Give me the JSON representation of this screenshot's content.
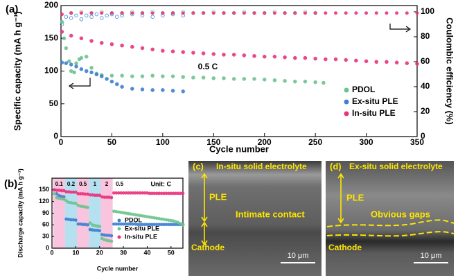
{
  "chart_data": [
    {
      "type": "scatter",
      "panel": "(a)",
      "xlabel": "Cycle number",
      "ylabel": "Specific capacity (mA h g⁻¹)",
      "y2label": "Coulombic efficiency (%)",
      "annotations": [
        "0.5 C"
      ],
      "xlim": [
        0,
        350
      ],
      "xticks": [
        0,
        50,
        100,
        150,
        200,
        250,
        300,
        350
      ],
      "ylim": [
        0,
        200
      ],
      "yticks": [
        0,
        50,
        100,
        150,
        200
      ],
      "y2lim": [
        0,
        105
      ],
      "y2ticks": [
        0,
        20,
        40,
        60,
        80,
        100
      ],
      "series": [
        {
          "axis": "y2",
          "color": "#6ec28e",
          "marker": "open",
          "x": [
            10,
            20,
            30,
            40,
            50,
            60,
            70,
            80,
            90,
            100,
            110,
            120,
            130,
            140,
            150,
            160,
            170,
            180,
            190,
            200,
            210,
            220,
            230,
            240,
            250
          ],
          "values": [
            99,
            100,
            99,
            100,
            99,
            99,
            100,
            99,
            100,
            99,
            99,
            100,
            99,
            99,
            100,
            99,
            99,
            100,
            99,
            99,
            100,
            99,
            99,
            100,
            99
          ]
        },
        {
          "axis": "y2",
          "color": "#3d7fd1",
          "marker": "open",
          "x": [
            1,
            5,
            10,
            15,
            20,
            25,
            30,
            35,
            40,
            45,
            50,
            55,
            60,
            70,
            80,
            90,
            100,
            110,
            120
          ],
          "values": [
            90,
            96,
            95,
            97,
            94,
            97,
            96,
            98,
            95,
            97,
            98,
            96,
            97,
            98,
            97,
            96,
            97,
            98,
            97
          ]
        },
        {
          "axis": "y2",
          "color": "#e8327c",
          "marker": "filled",
          "x": [
            1,
            10,
            20,
            30,
            40,
            50,
            60,
            70,
            80,
            90,
            100,
            110,
            120,
            130,
            140,
            150,
            160,
            170,
            180,
            190,
            200,
            210,
            220,
            230,
            240,
            250,
            260,
            270,
            280,
            290,
            300,
            310,
            320,
            330,
            340,
            350
          ],
          "values": [
            98,
            99,
            99,
            99,
            99,
            99,
            99,
            99,
            99,
            99,
            99,
            99,
            99,
            99,
            99,
            99,
            99,
            99,
            99,
            99,
            99,
            99,
            99,
            99,
            99,
            99,
            99,
            99,
            99,
            99,
            99,
            99,
            99,
            99,
            99,
            99
          ]
        },
        {
          "name": "PDOL",
          "color": "#6ec28e",
          "marker": "filled",
          "x": [
            1,
            3,
            5,
            8,
            10,
            13,
            15,
            18,
            20,
            25,
            30,
            35,
            40,
            50,
            60,
            70,
            80,
            90,
            100,
            110,
            120,
            130,
            140,
            150,
            160,
            170,
            180,
            190,
            200,
            210,
            220,
            230,
            240,
            250,
            258
          ],
          "values": [
            175,
            150,
            135,
            115,
            100,
            98,
            112,
            118,
            120,
            122,
            105,
            96,
            94,
            93,
            93,
            92,
            92,
            93,
            92,
            92,
            91,
            90,
            90,
            89,
            89,
            88,
            88,
            88,
            87,
            86,
            85,
            84,
            84,
            83,
            82
          ]
        },
        {
          "name": "Ex-situ PLE",
          "color": "#3d7fd1",
          "marker": "filled",
          "x": [
            1,
            5,
            10,
            15,
            20,
            25,
            30,
            35,
            40,
            45,
            50,
            55,
            60,
            70,
            80,
            90,
            100,
            110,
            120
          ],
          "values": [
            113,
            112,
            110,
            107,
            103,
            100,
            98,
            95,
            92,
            88,
            84,
            80,
            76,
            73,
            72,
            71,
            71,
            70,
            69
          ]
        },
        {
          "name": "In-situ PLE",
          "color": "#e8327c",
          "marker": "filled",
          "x": [
            1,
            10,
            20,
            30,
            40,
            50,
            60,
            70,
            80,
            90,
            100,
            110,
            120,
            130,
            140,
            150,
            160,
            170,
            180,
            190,
            200,
            210,
            220,
            230,
            240,
            250,
            260,
            270,
            280,
            290,
            300,
            310,
            320,
            330,
            340,
            350
          ],
          "values": [
            160,
            154,
            150,
            146,
            143,
            141,
            139,
            137,
            135,
            133,
            131,
            130,
            129,
            128,
            127,
            126,
            125,
            125,
            124,
            123,
            122,
            122,
            121,
            120,
            120,
            119,
            118,
            118,
            117,
            116,
            115,
            114,
            114,
            113,
            112,
            111
          ]
        }
      ]
    },
    {
      "type": "scatter",
      "panel": "(b)",
      "xlabel": "Cycle number",
      "ylabel": "Discharge capacity (mA h g⁻¹)",
      "annotations": [
        "Unit: C"
      ],
      "xlim": [
        0,
        55
      ],
      "xticks": [
        0,
        10,
        20,
        30,
        40,
        50
      ],
      "ylim": [
        0,
        180
      ],
      "yticks": [
        0,
        30,
        60,
        90,
        120,
        150
      ],
      "bands": [
        {
          "label": "0.1",
          "start": 0.5,
          "end": 5.5,
          "color": "#f9c4de"
        },
        {
          "label": "0.2",
          "start": 5.5,
          "end": 10.5,
          "color": "#b5e0f0"
        },
        {
          "label": "0.5",
          "start": 10.5,
          "end": 15.5,
          "color": "#f9c4de"
        },
        {
          "label": "1",
          "start": 15.5,
          "end": 20.5,
          "color": "#b5e0f0"
        },
        {
          "label": "2",
          "start": 20.5,
          "end": 25.5,
          "color": "#f9c4de"
        },
        {
          "label": "0.5",
          "start": 25.5
        }
      ],
      "x": [
        1,
        2,
        3,
        4,
        5,
        6,
        7,
        8,
        9,
        10,
        11,
        12,
        13,
        14,
        15,
        16,
        17,
        18,
        19,
        20,
        21,
        22,
        23,
        24,
        25,
        26,
        27,
        28,
        29,
        30,
        31,
        32,
        33,
        34,
        35,
        36,
        37,
        38,
        39,
        40,
        41,
        42,
        43,
        44,
        45,
        46,
        47,
        48,
        49,
        50,
        51,
        52,
        53,
        54,
        55
      ],
      "series": [
        {
          "name": "PDOL",
          "color": "#3d7fd1",
          "values": [
            150,
            140,
            135,
            133,
            132,
            75,
            74,
            73,
            73,
            72,
            62,
            62,
            61,
            61,
            60,
            48,
            47,
            46,
            46,
            45,
            35,
            34,
            33,
            33,
            32,
            62,
            62,
            62,
            62,
            62,
            62,
            62,
            62,
            62,
            62,
            61,
            61,
            61,
            61,
            61,
            61,
            61,
            61,
            61,
            61,
            61,
            61,
            61,
            61,
            61,
            61,
            61,
            61,
            61,
            61
          ]
        },
        {
          "name": "Ex-situ PLE",
          "color": "#6ec28e",
          "values": [
            140,
            130,
            128,
            127,
            126,
            122,
            118,
            117,
            116,
            115,
            110,
            108,
            107,
            106,
            105,
            65,
            60,
            58,
            57,
            56,
            25,
            22,
            20,
            19,
            18,
            95,
            94,
            93,
            92,
            91,
            90,
            89,
            88,
            87,
            86,
            85,
            84,
            83,
            82,
            81,
            80,
            79,
            78,
            77,
            76,
            75,
            74,
            73,
            72,
            71,
            70,
            68,
            66,
            63,
            60
          ]
        },
        {
          "name": "In-situ PLE",
          "color": "#e8327c",
          "values": [
            150,
            149,
            149,
            148,
            148,
            145,
            145,
            144,
            144,
            144,
            140,
            140,
            140,
            139,
            139,
            137,
            137,
            136,
            136,
            136,
            132,
            131,
            131,
            131,
            130,
            142,
            142,
            142,
            142,
            142,
            142,
            142,
            142,
            142,
            142,
            142,
            142,
            142,
            142,
            142,
            141,
            141,
            141,
            141,
            141,
            141,
            141,
            141,
            141,
            141,
            141,
            141,
            141,
            141,
            141
          ]
        }
      ]
    }
  ],
  "images": [
    {
      "panel": "(c)",
      "title": "In-situ solid electrolyte",
      "layer": "PLE",
      "note": "Intimate contact",
      "bottom": "Cathode",
      "scale": "10 μm"
    },
    {
      "panel": "(d)",
      "title": "Ex-situ solid electrolyte",
      "layer": "PLE",
      "note": "Obvious gaps",
      "bottom": "Cathode",
      "scale": "10 μm"
    }
  ]
}
